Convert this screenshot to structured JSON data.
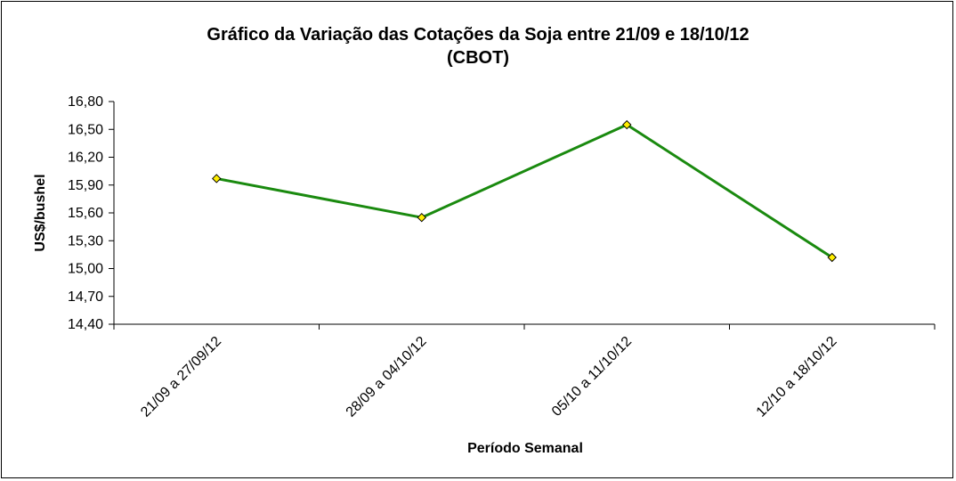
{
  "chart_data": {
    "type": "line",
    "title_line1": "Gráfico da Variação das Cotações da Soja entre 21/09 e 18/10/12",
    "title_line2": "(CBOT)",
    "xlabel": "Período Semanal",
    "ylabel": "US$/bushel",
    "categories": [
      "21/09 a 27/09/12",
      "28/09 a 04/10/12",
      "05/10 a 11/10/12",
      "12/10 a 18/10/12"
    ],
    "values": [
      15.97,
      15.55,
      16.55,
      15.12
    ],
    "y_ticks": [
      "16,80",
      "16,50",
      "16,20",
      "15,90",
      "15,60",
      "15,30",
      "15,00",
      "14,70",
      "14,40"
    ],
    "ylim": [
      14.4,
      16.8
    ],
    "grid": false,
    "legend": "none",
    "line_color": "#1a8a0f",
    "marker_color": "#ffee00"
  }
}
